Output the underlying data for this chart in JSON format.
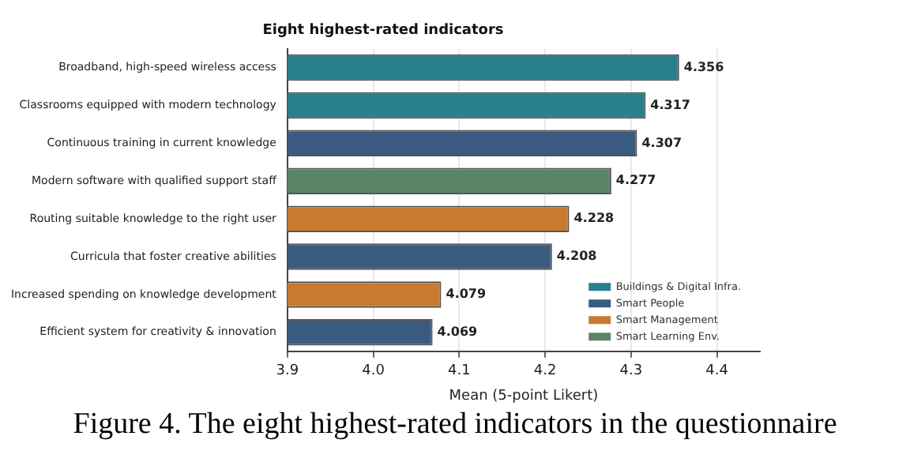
{
  "chart_data": {
    "type": "bar",
    "orientation": "horizontal",
    "title": "Eight highest-rated indicators",
    "xlabel": "Mean (5-point Likert)",
    "categories": [
      "Broadband, high-speed wireless access",
      "Classrooms equipped with modern technology",
      "Continuous training in current knowledge",
      "Modern software with qualified support staff",
      "Routing suitable knowledge to the right user",
      "Curricula that foster creative abilities",
      "Increased spending on knowledge development",
      "Efficient system for creativity & innovation"
    ],
    "series": [
      {
        "name": "Buildings & Digital Infra.",
        "color": "#2a7f8e",
        "values": [
          4.356,
          4.317,
          null,
          null,
          null,
          null,
          null,
          null
        ]
      },
      {
        "name": "Smart People",
        "color": "#3b5a80",
        "values": [
          null,
          null,
          4.307,
          null,
          null,
          4.208,
          null,
          4.069
        ]
      },
      {
        "name": "Smart Management",
        "color": "#c77a30",
        "values": [
          null,
          null,
          null,
          null,
          4.228,
          null,
          4.079,
          null
        ]
      },
      {
        "name": "Smart Learning Env.",
        "color": "#5b8466",
        "values": [
          null,
          null,
          null,
          4.277,
          null,
          null,
          null,
          null
        ]
      }
    ],
    "xlim": [
      3.9,
      4.45
    ],
    "xticks": [
      3.9,
      {
        "value": 4,
        "label": "4.0"
      },
      4.1,
      4.2,
      4.3,
      4.4
    ],
    "grid": "x",
    "legend": "bottom right",
    "data_labels": true,
    "annotations": [
      "Figure 4.  The eight highest-rated indicators in the questionnaire"
    ]
  }
}
